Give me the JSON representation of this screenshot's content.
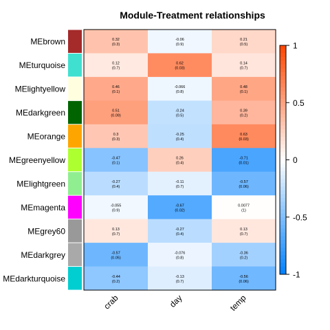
{
  "chart_data": {
    "type": "heatmap",
    "title": "Module-Treatment relationships",
    "rows": [
      "MEbrown",
      "MEturquoise",
      "MElightyellow",
      "MEdarkgreen",
      "MEorange",
      "MEgreenyellow",
      "MElightgreen",
      "MEmagenta",
      "MEgrey60",
      "MEdarkgrey",
      "MEdarkturquoise"
    ],
    "row_colors": [
      "#a52a2a",
      "#40e0d0",
      "#ffffe0",
      "#006400",
      "#ffa500",
      "#adff2f",
      "#90ee90",
      "#ff00ff",
      "#999999",
      "#a9a9a9",
      "#00ced1"
    ],
    "columns": [
      "crab",
      "day",
      "temp"
    ],
    "correlations": [
      [
        0.32,
        -0.06,
        0.21
      ],
      [
        0.12,
        0.62,
        0.14
      ],
      [
        0.46,
        -0.066,
        0.48
      ],
      [
        0.51,
        -0.24,
        0.39
      ],
      [
        0.3,
        -0.25,
        0.63
      ],
      [
        -0.47,
        0.26,
        -0.71
      ],
      [
        -0.27,
        -0.11,
        -0.57
      ],
      [
        -0.055,
        -0.67,
        0.0077
      ],
      [
        0.13,
        -0.27,
        0.13
      ],
      [
        -0.57,
        -0.076,
        -0.36
      ],
      [
        -0.44,
        -0.13,
        -0.56
      ]
    ],
    "p_values": [
      [
        "(0.3)",
        "(0.9)",
        "(0.5)"
      ],
      [
        "(0.7)",
        "(0.03)",
        "(0.7)"
      ],
      [
        "(0.1)",
        "(0.8)",
        "(0.1)"
      ],
      [
        "(0.09)",
        "(0.5)",
        "(0.2)"
      ],
      [
        "(0.3)",
        "(0.4)",
        "(0.03)"
      ],
      [
        "(0.1)",
        "(0.4)",
        "(0.01)"
      ],
      [
        "(0.4)",
        "(0.7)",
        "(0.06)"
      ],
      [
        "(0.9)",
        "(0.02)",
        "(1)"
      ],
      [
        "(0.7)",
        "(0.4)",
        "(0.7)"
      ],
      [
        "(0.05)",
        "(0.8)",
        "(0.2)"
      ],
      [
        "(0.2)",
        "(0.7)",
        "(0.06)"
      ]
    ],
    "colorscale": {
      "range": [
        -1,
        1
      ],
      "ticks": [
        -1,
        -0.5,
        0,
        0.5,
        1
      ],
      "tick_labels": [
        "-1",
        "-0.5",
        "0",
        "0.5",
        "1"
      ],
      "negative_color": "#0080ff",
      "mid_color": "#ffffff",
      "positive_color": "#ff4500"
    }
  }
}
